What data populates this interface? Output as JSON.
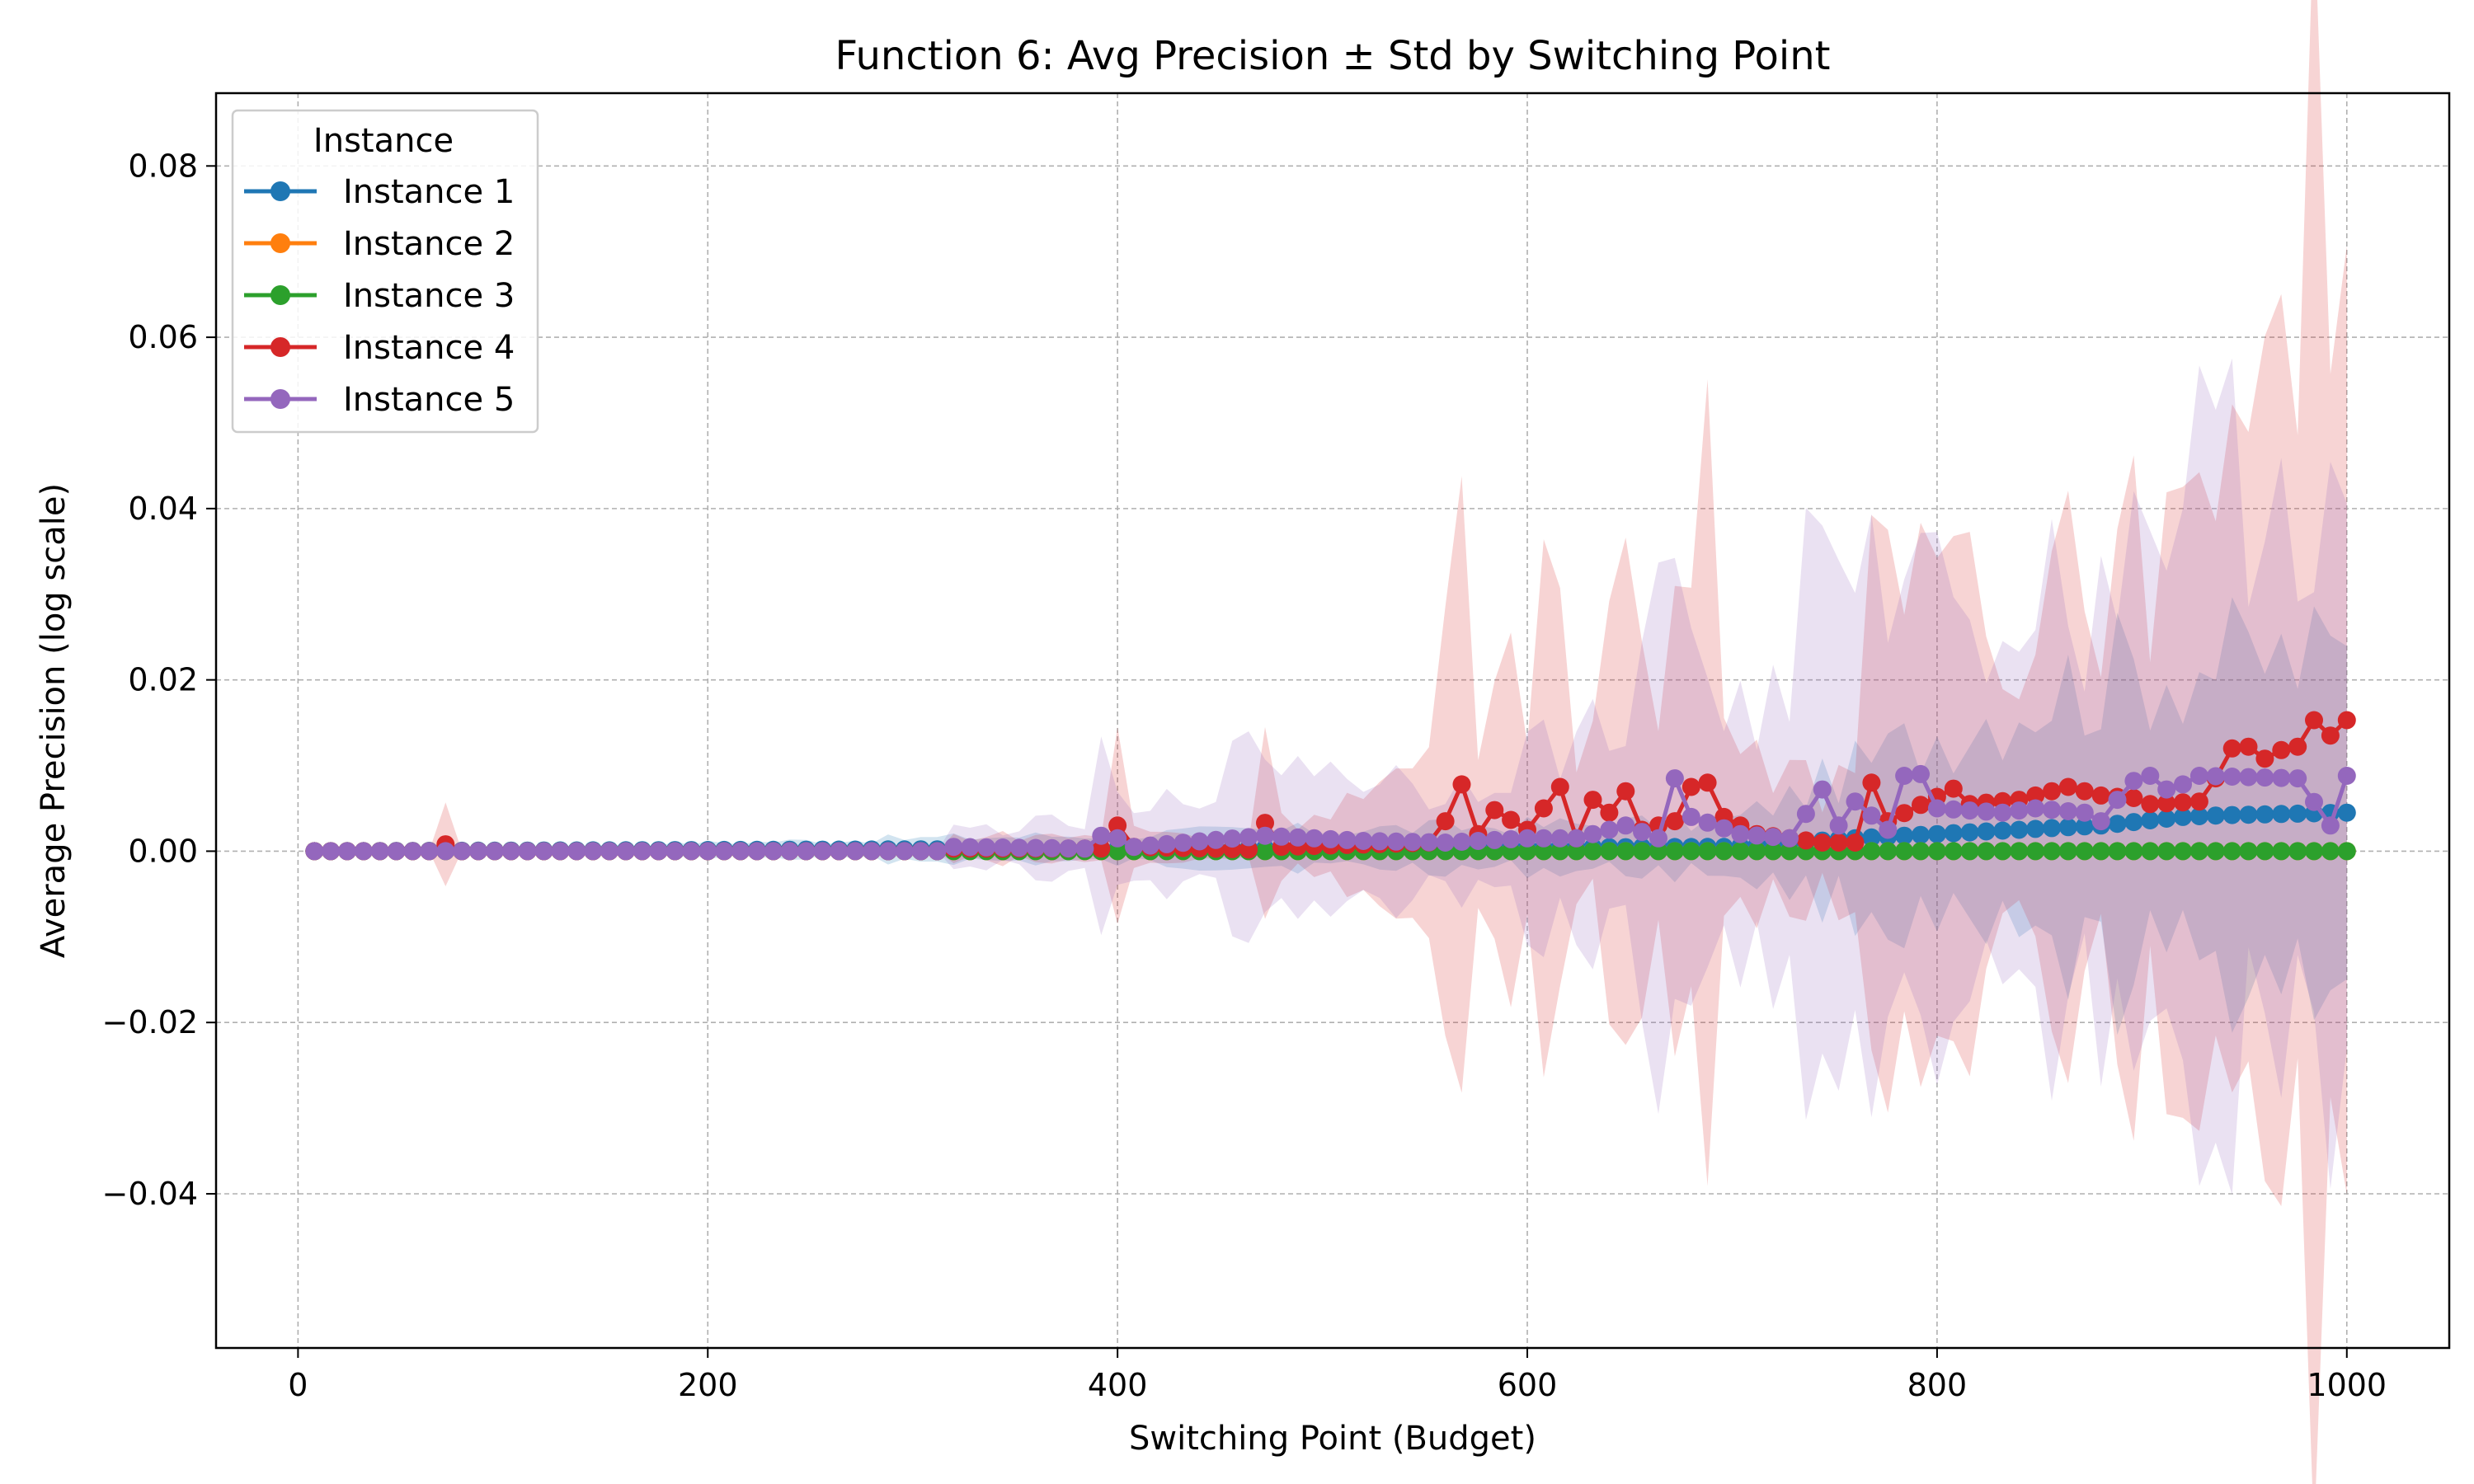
{
  "chart_data": {
    "type": "line",
    "title": "Function 6: Avg Precision ± Std by Switching Point",
    "xlabel": "Switching Point (Budget)",
    "ylabel": "Average Precision (log scale)",
    "xlim": [
      -40,
      1050
    ],
    "ylim": [
      -0.058,
      0.0885
    ],
    "xticks": [
      0,
      200,
      400,
      600,
      800,
      1000
    ],
    "xtick_labels": [
      "0",
      "200",
      "400",
      "600",
      "800",
      "1000"
    ],
    "yticks": [
      -0.04,
      -0.02,
      0.0,
      0.02,
      0.04,
      0.06,
      0.08
    ],
    "ytick_labels": [
      "−0.04",
      "−0.02",
      "0.00",
      "0.02",
      "0.04",
      "0.06",
      "0.08"
    ],
    "grid": true,
    "legend": {
      "title": "Instance",
      "placement": "top-left"
    },
    "x_start": 8,
    "x_step": 8,
    "series": [
      {
        "name": "Instance 1",
        "color": "#1f77b4",
        "mean_points": [
          [
            8,
            0
          ],
          [
            700,
            0.0005
          ],
          [
            760,
            0.0015
          ],
          [
            800,
            0.002
          ],
          [
            840,
            0.0025
          ],
          [
            880,
            0.003
          ],
          [
            900,
            0.0035
          ],
          [
            920,
            0.004
          ],
          [
            940,
            0.0042
          ],
          [
            1000,
            0.0045
          ]
        ],
        "std_points": [
          [
            8,
            0
          ],
          [
            700,
            0.003
          ],
          [
            760,
            0.008
          ],
          [
            800,
            0.012
          ],
          [
            850,
            0.016
          ],
          [
            900,
            0.018
          ],
          [
            950,
            0.018
          ],
          [
            1000,
            0.018
          ]
        ]
      },
      {
        "name": "Instance 2",
        "color": "#ff7f0e",
        "mean_points": [
          [
            8,
            0
          ],
          [
            1000,
            0
          ]
        ],
        "std_points": [
          [
            8,
            0
          ],
          [
            1000,
            0
          ]
        ]
      },
      {
        "name": "Instance 3",
        "color": "#2ca02c",
        "mean_points": [
          [
            8,
            0
          ],
          [
            1000,
            0
          ]
        ],
        "std_points": [
          [
            8,
            0
          ],
          [
            1000,
            0
          ]
        ]
      },
      {
        "name": "Instance 4",
        "color": "#d62728",
        "mean_points": [
          [
            8,
            0
          ],
          [
            64,
            0
          ],
          [
            72,
            0.0008
          ],
          [
            80,
            0
          ],
          [
            312,
            0
          ],
          [
            320,
            0.0003
          ],
          [
            392,
            0.0003
          ],
          [
            400,
            0.003
          ],
          [
            408,
            0.0005
          ],
          [
            464,
            0.0002
          ],
          [
            472,
            0.0033
          ],
          [
            480,
            0.0005
          ],
          [
            552,
            0.001
          ],
          [
            560,
            0.0035
          ],
          [
            568,
            0.0078
          ],
          [
            576,
            0.002
          ],
          [
            584,
            0.0048
          ],
          [
            600,
            0.0025
          ],
          [
            608,
            0.005
          ],
          [
            616,
            0.0075
          ],
          [
            624,
            0.0015
          ],
          [
            632,
            0.006
          ],
          [
            640,
            0.0045
          ],
          [
            648,
            0.007
          ],
          [
            656,
            0.0025
          ],
          [
            672,
            0.0035
          ],
          [
            680,
            0.0075
          ],
          [
            688,
            0.008
          ],
          [
            696,
            0.004
          ],
          [
            712,
            0.002
          ],
          [
            744,
            0.001
          ],
          [
            760,
            0.001
          ],
          [
            768,
            0.008
          ],
          [
            776,
            0.0035
          ],
          [
            808,
            0.0073
          ],
          [
            816,
            0.0055
          ],
          [
            840,
            0.006
          ],
          [
            864,
            0.0075
          ],
          [
            880,
            0.0065
          ],
          [
            896,
            0.0062
          ],
          [
            904,
            0.0055
          ],
          [
            928,
            0.0058
          ],
          [
            936,
            0.0085
          ],
          [
            944,
            0.012
          ],
          [
            952,
            0.0122
          ],
          [
            960,
            0.0108
          ],
          [
            968,
            0.0118
          ],
          [
            976,
            0.0122
          ],
          [
            984,
            0.0153
          ],
          [
            992,
            0.0135
          ],
          [
            1000,
            0.0153
          ]
        ],
        "std_points": [
          [
            8,
            0
          ],
          [
            64,
            0
          ],
          [
            72,
            0.0045
          ],
          [
            80,
            0
          ],
          [
            312,
            0
          ],
          [
            320,
            0.0015
          ],
          [
            392,
            0.0015
          ],
          [
            400,
            0.013
          ],
          [
            408,
            0.002
          ],
          [
            464,
            0.001
          ],
          [
            472,
            0.016
          ],
          [
            480,
            0.003
          ],
          [
            552,
            0.008
          ],
          [
            568,
            0.032
          ],
          [
            576,
            0.01
          ],
          [
            584,
            0.026
          ],
          [
            600,
            0.012
          ],
          [
            616,
            0.032
          ],
          [
            624,
            0.01
          ],
          [
            648,
            0.028
          ],
          [
            664,
            0.012
          ],
          [
            680,
            0.035
          ],
          [
            688,
            0.034
          ],
          [
            696,
            0.02
          ],
          [
            712,
            0.01
          ],
          [
            744,
            0.006
          ],
          [
            760,
            0.012
          ],
          [
            768,
            0.03
          ],
          [
            784,
            0.018
          ],
          [
            808,
            0.035
          ],
          [
            824,
            0.022
          ],
          [
            840,
            0.02
          ],
          [
            864,
            0.032
          ],
          [
            880,
            0.025
          ],
          [
            904,
            0.03
          ],
          [
            928,
            0.028
          ],
          [
            936,
            0.04
          ],
          [
            944,
            0.055
          ],
          [
            952,
            0.053
          ],
          [
            960,
            0.05
          ],
          [
            968,
            0.052
          ],
          [
            976,
            0.053
          ],
          [
            984,
            0.067
          ],
          [
            992,
            0.057
          ],
          [
            1000,
            0.067
          ]
        ]
      },
      {
        "name": "Instance 5",
        "color": "#9467bd",
        "mean_points": [
          [
            8,
            0
          ],
          [
            312,
            0
          ],
          [
            320,
            0.0005
          ],
          [
            384,
            0.0003
          ],
          [
            392,
            0.0018
          ],
          [
            400,
            0.0015
          ],
          [
            408,
            0.0005
          ],
          [
            472,
            0.0018
          ],
          [
            520,
            0.0012
          ],
          [
            560,
            0.001
          ],
          [
            600,
            0.0015
          ],
          [
            624,
            0.0015
          ],
          [
            648,
            0.003
          ],
          [
            664,
            0.0015
          ],
          [
            672,
            0.0085
          ],
          [
            680,
            0.004
          ],
          [
            704,
            0.002
          ],
          [
            728,
            0.0015
          ],
          [
            744,
            0.0072
          ],
          [
            752,
            0.003
          ],
          [
            760,
            0.0058
          ],
          [
            776,
            0.0025
          ],
          [
            784,
            0.0088
          ],
          [
            792,
            0.009
          ],
          [
            800,
            0.005
          ],
          [
            832,
            0.0045
          ],
          [
            848,
            0.005
          ],
          [
            872,
            0.0045
          ],
          [
            880,
            0.0035
          ],
          [
            888,
            0.006
          ],
          [
            896,
            0.0082
          ],
          [
            904,
            0.0088
          ],
          [
            912,
            0.0072
          ],
          [
            920,
            0.0078
          ],
          [
            928,
            0.0088
          ],
          [
            1000,
            0.0088
          ],
          [
            992,
            0.003
          ],
          [
            976,
            0.0085
          ]
        ],
        "std_points": [
          [
            8,
            0
          ],
          [
            312,
            0
          ],
          [
            320,
            0.002
          ],
          [
            384,
            0.003
          ],
          [
            392,
            0.008
          ],
          [
            408,
            0.003
          ],
          [
            472,
            0.01
          ],
          [
            520,
            0.008
          ],
          [
            560,
            0.006
          ],
          [
            600,
            0.01
          ],
          [
            640,
            0.012
          ],
          [
            672,
            0.028
          ],
          [
            688,
            0.018
          ],
          [
            712,
            0.012
          ],
          [
            744,
            0.03
          ],
          [
            760,
            0.02
          ],
          [
            784,
            0.035
          ],
          [
            800,
            0.025
          ],
          [
            840,
            0.025
          ],
          [
            880,
            0.025
          ],
          [
            904,
            0.035
          ],
          [
            928,
            0.035
          ],
          [
            1000,
            0.035
          ]
        ]
      }
    ]
  }
}
